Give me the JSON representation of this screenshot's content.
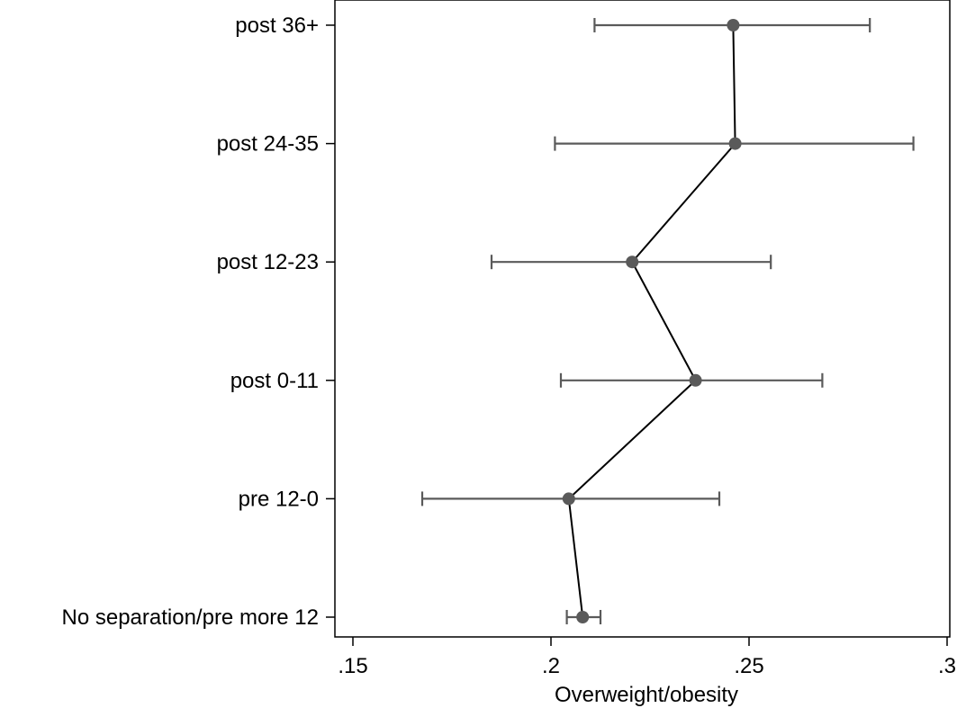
{
  "chart_data": {
    "type": "scatter",
    "title": "",
    "xlabel": "Overweight/obesity",
    "ylabel": "",
    "xlim": [
      0.145,
      0.303
    ],
    "xticks": [
      {
        "value": 0.15,
        "label": ".15"
      },
      {
        "value": 0.2,
        "label": ".2"
      },
      {
        "value": 0.25,
        "label": ".25"
      },
      {
        "value": 0.3,
        "label": ".3"
      }
    ],
    "categories": [
      "post 36+",
      "post 24-35",
      "post 12-23",
      "post 0-11",
      "pre 12-0",
      "No separation/pre more 12"
    ],
    "series": [
      {
        "estimates": [
          0.246,
          0.2465,
          0.2205,
          0.2365,
          0.2045,
          0.208
        ],
        "ci_low": [
          0.211,
          0.201,
          0.185,
          0.2025,
          0.1675,
          0.204
        ],
        "ci_high": [
          0.2805,
          0.2915,
          0.2555,
          0.2685,
          0.2425,
          0.2125
        ]
      }
    ],
    "connected": true,
    "grid": false,
    "legend": "none"
  }
}
